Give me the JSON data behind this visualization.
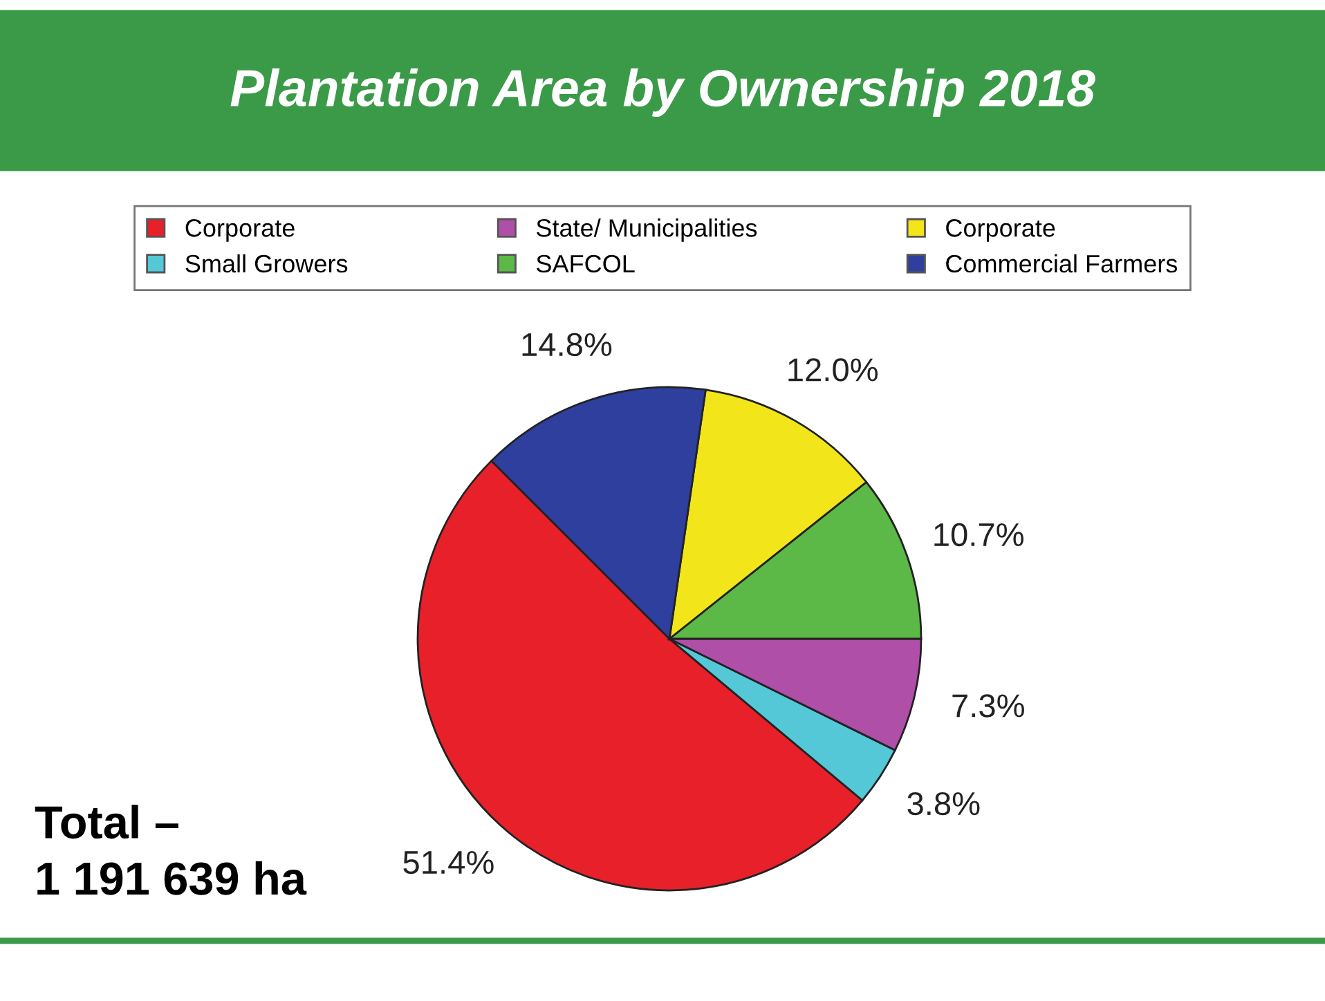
{
  "chart_data": {
    "type": "pie",
    "title": "Plantation Area by Ownership 2018",
    "categories": [
      "Corporate",
      "Small Growers",
      "State/ Municipalities",
      "SAFCOL",
      "Corporate",
      "Commercial Farmers"
    ],
    "values": [
      51.4,
      3.8,
      7.3,
      10.7,
      12.0,
      14.8
    ],
    "colors": [
      "#e8202a",
      "#55c8d8",
      "#b04fa8",
      "#5cb847",
      "#f2e61a",
      "#2e3f9e"
    ],
    "value_labels": [
      "51.4%",
      "3.8%",
      "7.3%",
      "10.7%",
      "12.0%",
      "14.8%"
    ],
    "legend": "top",
    "annotations": [
      "Total –\n1 191 639 ha"
    ]
  }
}
